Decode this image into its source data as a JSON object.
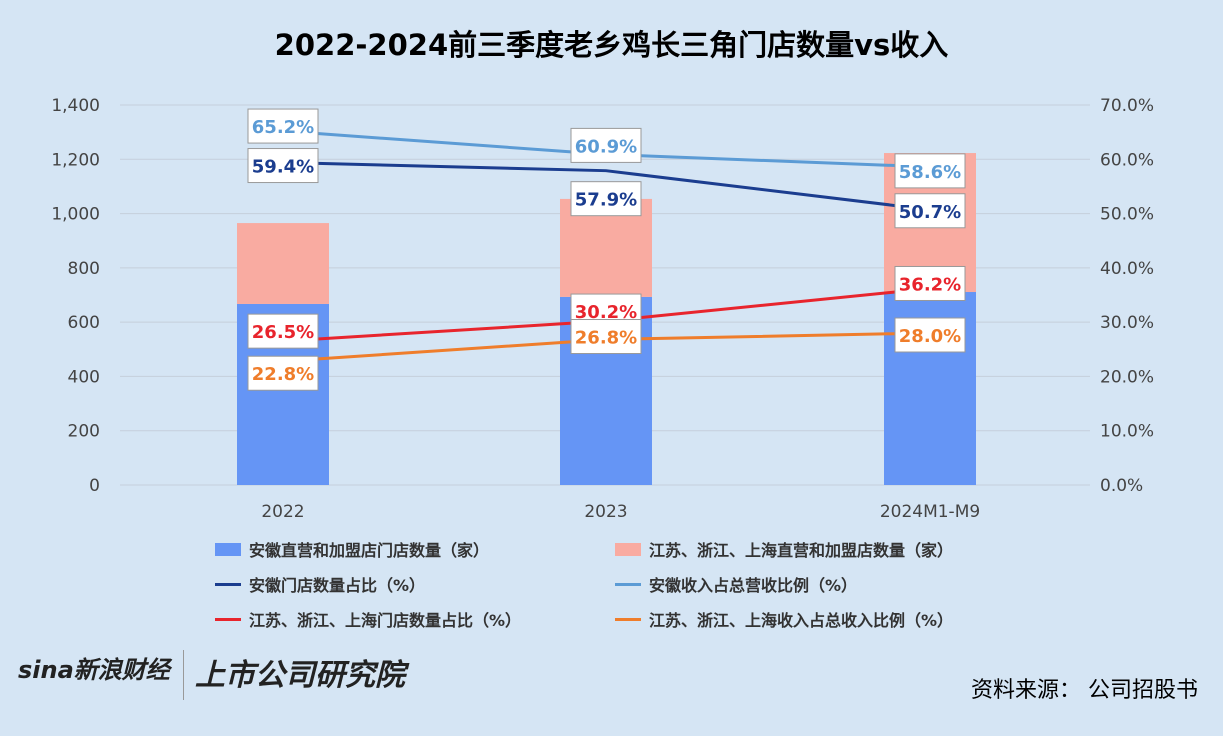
{
  "chart_data": {
    "type": "bar+line",
    "title": "2022-2024前三季度老乡鸡长三角门店数量vs收入",
    "categories": [
      "2022",
      "2023",
      "2024M1-M9"
    ],
    "left_axis": {
      "range": [
        0,
        1400
      ],
      "ticks": [
        "0",
        "200",
        "400",
        "600",
        "800",
        "1,000",
        "1,200",
        "1,400"
      ]
    },
    "right_axis": {
      "range": [
        0,
        70
      ],
      "ticks": [
        "0.0%",
        "10.0%",
        "20.0%",
        "30.0%",
        "40.0%",
        "50.0%",
        "60.0%",
        "70.0%"
      ]
    },
    "bars": [
      {
        "name": "安徽直营和加盟店门店数量（家）",
        "color": "#6595f5",
        "values": [
          667,
          693,
          711
        ]
      },
      {
        "name": "江苏、浙江、上海直营和加盟店数量（家）",
        "color": "#f9aba1",
        "values": [
          298,
          361,
          512
        ]
      }
    ],
    "lines": [
      {
        "name": "安徽门店数量占比（%）",
        "color": "#1b3d8f",
        "values": [
          59.4,
          57.9,
          50.7
        ],
        "labels": [
          "59.4%",
          "57.9%",
          "50.7%"
        ]
      },
      {
        "name": "安徽收入占总营收比例（%）",
        "color": "#5b9bd5",
        "values": [
          65.2,
          60.9,
          58.6
        ],
        "labels": [
          "65.2%",
          "60.9%",
          "58.6%"
        ]
      },
      {
        "name": "江苏、浙江、上海门店数量占比（%）",
        "color": "#e8242c",
        "values": [
          26.5,
          30.2,
          36.2
        ],
        "labels": [
          "26.5%",
          "30.2%",
          "36.2%"
        ]
      },
      {
        "name": "江苏、浙江、上海收入占总收入比例（%）",
        "color": "#ef7d2b",
        "values": [
          22.8,
          26.8,
          28.0
        ],
        "labels": [
          "22.8%",
          "26.8%",
          "28.0%"
        ]
      }
    ],
    "grid": true,
    "legend_position": "bottom"
  },
  "footer": {
    "logo1": "sina新浪财经",
    "logo2": "上市公司研究院",
    "source": "资料来源：  公司招股书"
  }
}
